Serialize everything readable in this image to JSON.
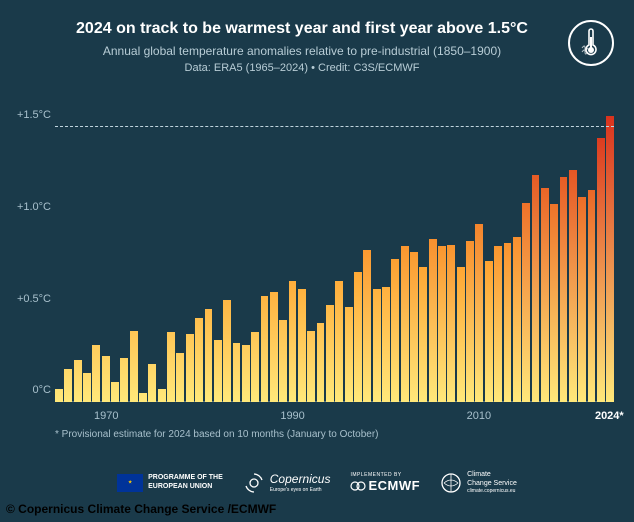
{
  "header": {
    "title": "2024 on track to be warmest year and first year above 1.5°C",
    "subtitle": "Annual global temperature anomalies relative to pre-industrial (1850–1900)",
    "data_line": "Data: ERA5 (1965–2024)  •  Credit: C3S/ECMWF"
  },
  "chart": {
    "type": "bar",
    "ylim": [
      0,
      1.65
    ],
    "ytick_labels": [
      "0°C",
      "+0.5°C",
      "+1.0°C",
      "+1.5°C"
    ],
    "ytick_values": [
      0,
      0.5,
      1.0,
      1.5
    ],
    "threshold_value": 1.5,
    "x_start_year": 1965,
    "x_end_year": 2024,
    "x_ticks": [
      1970,
      1990,
      2010
    ],
    "x_label_2024": "2024*",
    "background_color": "#1a3a4a",
    "grid_color": "#5a7684",
    "gradient_low": "#ffe87a",
    "gradient_mid": "#ffa532",
    "gradient_high": "#d9331e",
    "axis_label_color": "#a8c0cc",
    "values": [
      0.07,
      0.18,
      0.23,
      0.16,
      0.31,
      0.25,
      0.11,
      0.24,
      0.39,
      0.05,
      0.21,
      0.07,
      0.38,
      0.27,
      0.37,
      0.46,
      0.51,
      0.34,
      0.56,
      0.32,
      0.31,
      0.38,
      0.58,
      0.6,
      0.45,
      0.66,
      0.62,
      0.39,
      0.43,
      0.53,
      0.66,
      0.52,
      0.71,
      0.83,
      0.62,
      0.63,
      0.78,
      0.85,
      0.82,
      0.74,
      0.89,
      0.85,
      0.86,
      0.74,
      0.88,
      0.97,
      0.77,
      0.85,
      0.87,
      0.9,
      1.09,
      1.24,
      1.17,
      1.08,
      1.23,
      1.27,
      1.12,
      1.16,
      1.44,
      1.56
    ]
  },
  "footnote": "* Provisional estimate for 2024 based on 10 months (January to October)",
  "logos": {
    "eu": "PROGRAMME OF THE\nEUROPEAN UNION",
    "copernicus": "Copernicus",
    "copernicus_sub": "Europe's eyes on Earth",
    "ecmwf_pre": "IMPLEMENTED BY",
    "ecmwf": "ECMWF",
    "climate": "Climate\nChange Service",
    "climate_url": "climate.copernicus.eu"
  },
  "copyright": "© Copernicus Climate Change Service /ECMWF"
}
